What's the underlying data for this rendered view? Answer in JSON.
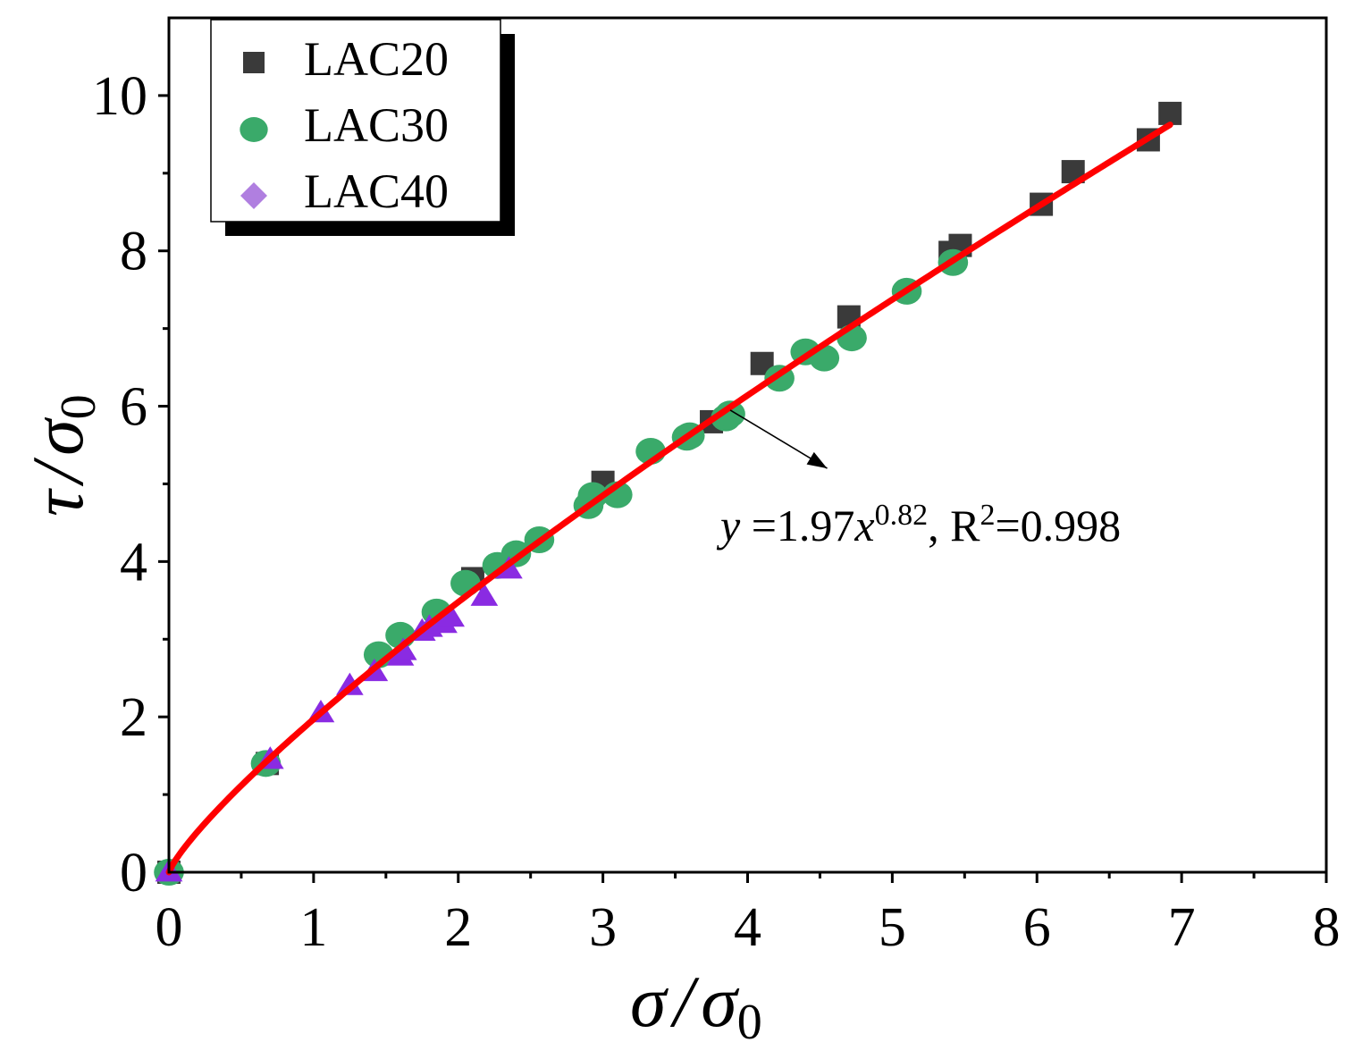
{
  "chart_data": {
    "type": "scatter",
    "xlabel": {
      "symbol": "σ",
      "separator": "/",
      "denominator": "σ",
      "subscript": "0"
    },
    "ylabel": {
      "symbol": "τ",
      "separator": "/",
      "denominator": "σ",
      "subscript": "0"
    },
    "xlim": [
      0,
      8
    ],
    "ylim": [
      0,
      11
    ],
    "xticks": [
      0,
      1,
      2,
      3,
      4,
      5,
      6,
      7,
      8
    ],
    "xtick_labels": [
      "0",
      "1",
      "2",
      "3",
      "4",
      "5",
      "6",
      "7",
      "8"
    ],
    "yticks": [
      0,
      2,
      4,
      6,
      8,
      10
    ],
    "ytick_labels": [
      "0",
      "2",
      "4",
      "6",
      "8",
      "10"
    ],
    "legend_position": "top-left",
    "series": [
      {
        "name": "LAC20",
        "marker": "square",
        "color": "#3a3a3a",
        "x": [
          0.0,
          0.68,
          2.1,
          3.0,
          3.75,
          4.1,
          4.7,
          5.4,
          5.47,
          6.03,
          6.25,
          6.77,
          6.92
        ],
        "y": [
          0.0,
          1.4,
          3.78,
          5.02,
          5.8,
          6.55,
          7.15,
          7.98,
          8.07,
          8.6,
          9.02,
          9.43,
          9.77
        ]
      },
      {
        "name": "LAC30",
        "marker": "circle",
        "color": "#3aaa6a",
        "x": [
          0.0,
          0.67,
          1.45,
          1.6,
          1.85,
          2.05,
          2.27,
          2.4,
          2.56,
          2.9,
          2.93,
          3.1,
          3.33,
          3.58,
          3.6,
          3.85,
          3.88,
          4.22,
          4.4,
          4.53,
          4.72,
          5.1,
          5.42
        ],
        "y": [
          0.0,
          1.4,
          2.8,
          3.05,
          3.35,
          3.72,
          3.95,
          4.1,
          4.28,
          4.72,
          4.85,
          4.86,
          5.42,
          5.6,
          5.62,
          5.85,
          5.9,
          6.36,
          6.7,
          6.62,
          6.88,
          7.48,
          7.85
        ]
      },
      {
        "name": "LAC40",
        "marker": "triangle",
        "legend_marker": "diamond",
        "color": "#8a2be2",
        "legend_color": "#b07fe0",
        "x": [
          0.0,
          0.7,
          1.05,
          1.25,
          1.42,
          1.6,
          1.62,
          1.75,
          1.8,
          1.9,
          1.95,
          2.18,
          2.35
        ],
        "y": [
          0.0,
          1.45,
          2.05,
          2.4,
          2.58,
          2.78,
          2.85,
          3.1,
          3.15,
          3.2,
          3.28,
          3.55,
          3.9
        ]
      }
    ],
    "fit": {
      "a": 1.97,
      "b": 0.82,
      "x_range": [
        0,
        6.92
      ],
      "color": "#ff0000"
    },
    "annotation": {
      "pointer_from": [
        3.88,
        5.95
      ],
      "pointer_to": [
        4.55,
        5.2
      ],
      "lead": "y",
      "eq": " =1.97",
      "var": "x",
      "exp": "0.82",
      "r_part": ", R",
      "r_exp": "2",
      "r_val": "=0.998"
    }
  }
}
